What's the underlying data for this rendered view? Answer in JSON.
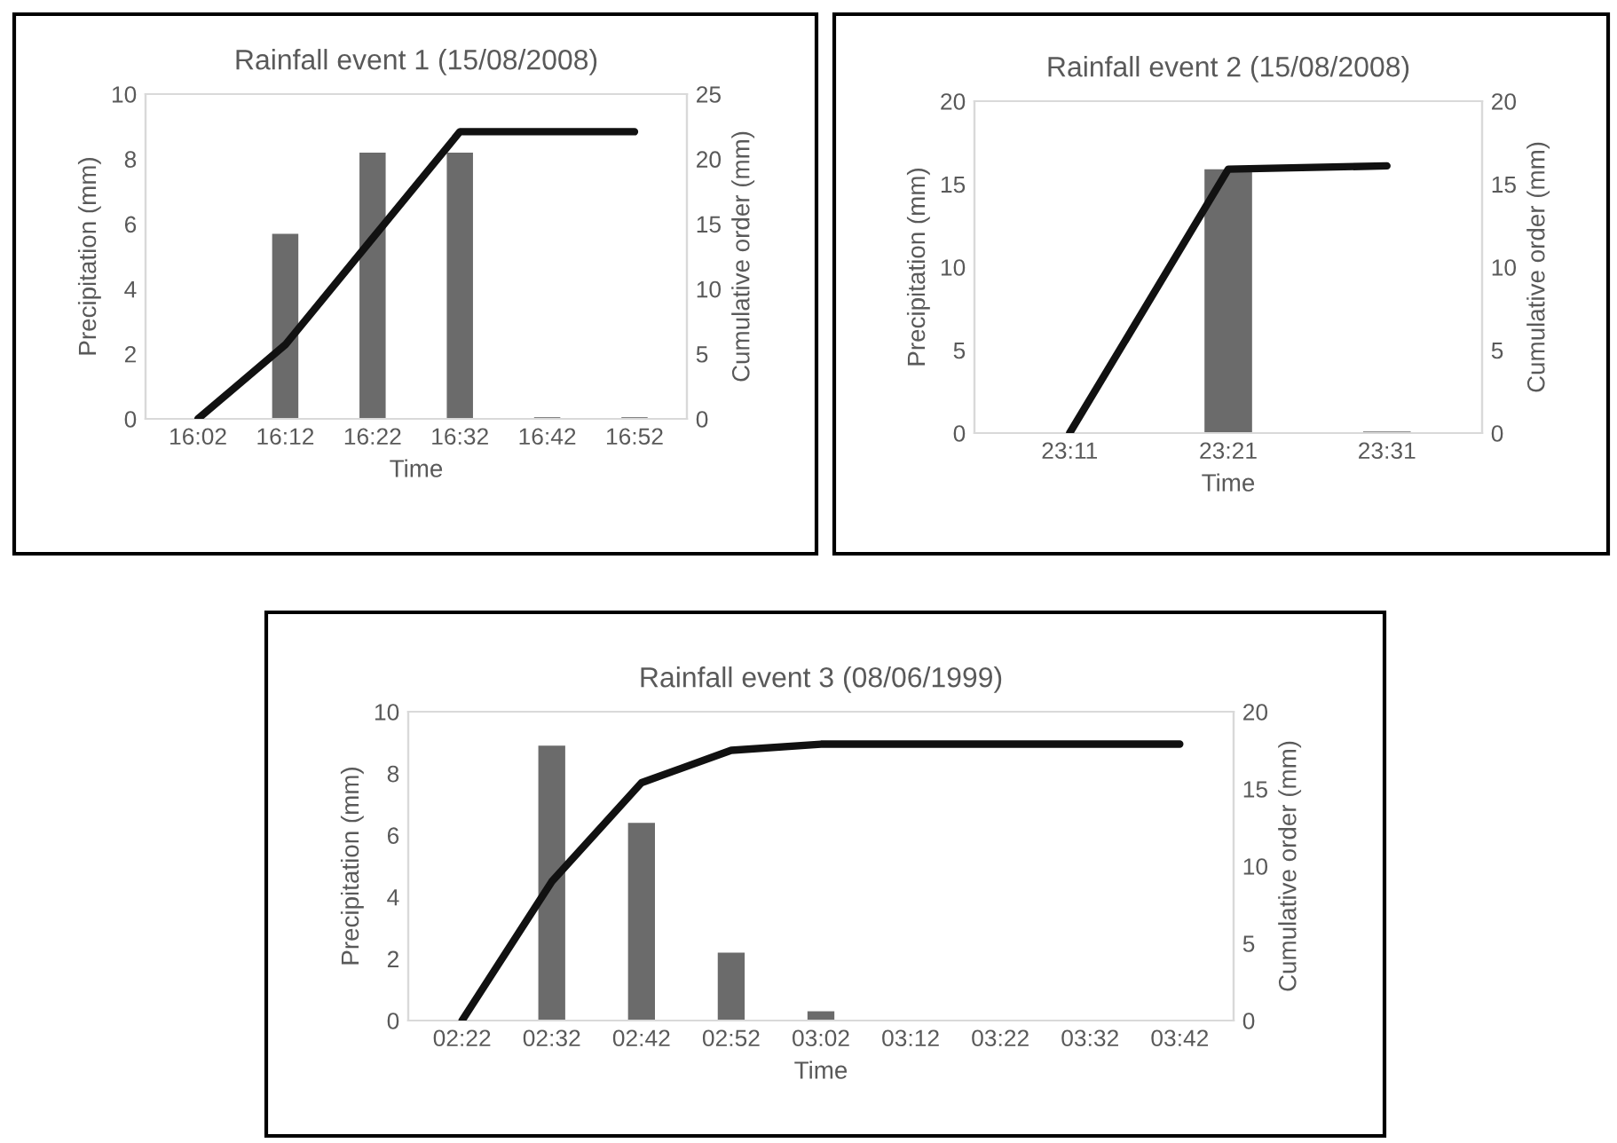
{
  "chart_data": [
    {
      "type": "bar",
      "title": "Rainfall event 1 (15/08/2008)",
      "xlabel": "Time",
      "ylabel": "Precipitation (mm)",
      "y2label": "Cumulative order (mm)",
      "categories": [
        "16:02",
        "16:12",
        "16:22",
        "16:32",
        "16:42",
        "16:52"
      ],
      "series": [
        {
          "color": "#6b6b6b",
          "values": [
            0,
            5.7,
            8.2,
            8.2,
            0.05,
            0.05
          ]
        },
        {
          "type": "line",
          "axis": "y2",
          "color": "#111111",
          "values": [
            0,
            5.7,
            13.9,
            22.1,
            22.1,
            22.1
          ]
        }
      ],
      "ylim": [
        0,
        10
      ],
      "yticks": [
        0,
        2,
        4,
        6,
        8,
        10
      ],
      "y2lim": [
        0,
        25
      ],
      "y2ticks": [
        0,
        5,
        10,
        15,
        20,
        25
      ]
    },
    {
      "type": "bar",
      "title": "Rainfall event 2 (15/08/2008)",
      "xlabel": "Time",
      "ylabel": "Precipitation (mm)",
      "y2label": "Cumulative order (mm)",
      "categories": [
        "23:11",
        "23:21",
        "23:31"
      ],
      "series": [
        {
          "color": "#6b6b6b",
          "values": [
            0,
            15.9,
            0.1
          ]
        },
        {
          "type": "line",
          "axis": "y2",
          "color": "#111111",
          "values": [
            0,
            15.9,
            16.1
          ]
        }
      ],
      "ylim": [
        0,
        20
      ],
      "yticks": [
        0,
        5,
        10,
        15,
        20
      ],
      "y2lim": [
        0,
        20
      ],
      "y2ticks": [
        0,
        5,
        10,
        15,
        20
      ]
    },
    {
      "type": "bar",
      "title": "Rainfall event 3 (08/06/1999)",
      "xlabel": "Time",
      "ylabel": "Precipitation (mm)",
      "y2label": "Cumulative order (mm)",
      "categories": [
        "02:22",
        "02:32",
        "02:42",
        "02:52",
        "03:02",
        "03:12",
        "03:22",
        "03:32",
        "03:42"
      ],
      "series": [
        {
          "color": "#6b6b6b",
          "values": [
            0,
            8.9,
            6.4,
            2.2,
            0.3,
            0,
            0,
            0,
            0
          ]
        },
        {
          "type": "line",
          "axis": "y2",
          "color": "#111111",
          "values": [
            0,
            9.0,
            15.4,
            17.5,
            17.9,
            17.9,
            17.9,
            17.9,
            17.9
          ]
        }
      ],
      "ylim": [
        0,
        10
      ],
      "yticks": [
        0,
        2,
        4,
        6,
        8,
        10
      ],
      "y2lim": [
        0,
        20
      ],
      "y2ticks": [
        0,
        5,
        10,
        15,
        20
      ]
    }
  ]
}
